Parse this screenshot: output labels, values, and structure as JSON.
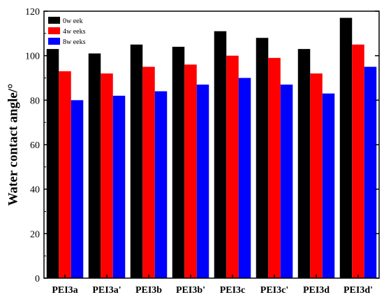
{
  "chart_data": {
    "type": "bar",
    "title": "",
    "xlabel": "",
    "ylabel": "Water contact angle/°",
    "ylim": [
      0,
      120
    ],
    "yticks": [
      0,
      20,
      40,
      60,
      80,
      100,
      120
    ],
    "categories": [
      "PEI3a",
      "PEI3a'",
      "PEI3b",
      "PEI3b'",
      "PEI3c",
      "PEI3c'",
      "PEI3d",
      "PEI3d'"
    ],
    "series": [
      {
        "name": "0w eek",
        "color": "#000000",
        "values": [
          103,
          101,
          105,
          104,
          111,
          108,
          103,
          117
        ]
      },
      {
        "name": "4w eeks",
        "color": "#ff0000",
        "values": [
          93,
          92,
          95,
          96,
          100,
          99,
          92,
          105
        ]
      },
      {
        "name": "8w eeks",
        "color": "#0000ff",
        "values": [
          80,
          82,
          84,
          87,
          90,
          87,
          83,
          95
        ]
      }
    ],
    "legend_position": "top-left",
    "grid": false
  }
}
